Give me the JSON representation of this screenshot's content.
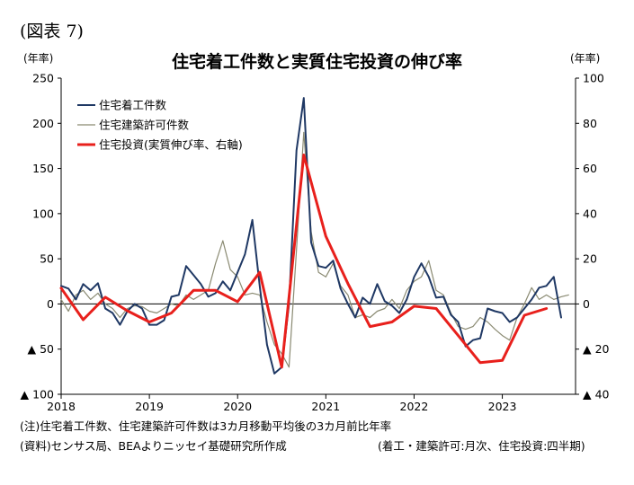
{
  "figure_label": "(図表 7)",
  "notes": {
    "note": "(注)住宅着工件数、住宅建築許可件数は3カ月移動平均後の3カ月前比年率",
    "source": "(資料)センサス局、BEAよりニッセイ基礎研究所作成",
    "frequency": "(着工・建築許可:月次、住宅投資:四半期)"
  },
  "chart_data": {
    "type": "line",
    "title": "住宅着工件数と実質住宅投資の伸び率",
    "left_axis": {
      "unit": "(年率)",
      "range": [
        -100,
        250
      ],
      "ticks": [
        {
          "value": 250,
          "label": "250"
        },
        {
          "value": 200,
          "label": "200"
        },
        {
          "value": 150,
          "label": "150"
        },
        {
          "value": 100,
          "label": "100"
        },
        {
          "value": 50,
          "label": "50"
        },
        {
          "value": 0,
          "label": "0"
        },
        {
          "value": -50,
          "label": "▲ 50"
        },
        {
          "value": -100,
          "label": "▲ 100"
        }
      ]
    },
    "right_axis": {
      "unit": "(年率)",
      "range": [
        -40,
        100
      ],
      "ticks": [
        {
          "value": 100,
          "label": "100"
        },
        {
          "value": 80,
          "label": "80"
        },
        {
          "value": 60,
          "label": "60"
        },
        {
          "value": 40,
          "label": "40"
        },
        {
          "value": 20,
          "label": "20"
        },
        {
          "value": 0,
          "label": "0"
        },
        {
          "value": -20,
          "label": "▲ 20"
        },
        {
          "value": -40,
          "label": "▲ 40"
        }
      ]
    },
    "x_axis": {
      "range": [
        2018.0,
        2023.83
      ],
      "year_labels": [
        {
          "x": 2018,
          "label": "2018"
        },
        {
          "x": 2019,
          "label": "2019"
        },
        {
          "x": 2020,
          "label": "2020"
        },
        {
          "x": 2021,
          "label": "2021"
        },
        {
          "x": 2022,
          "label": "2022"
        },
        {
          "x": 2023,
          "label": "2023"
        }
      ]
    },
    "legend_position": "top-left",
    "grid": false,
    "series": [
      {
        "name": "住宅着工件数",
        "axis": "left",
        "color": "#1f3864",
        "width": 2,
        "x": [
          2018.0,
          2018.083,
          2018.167,
          2018.25,
          2018.333,
          2018.417,
          2018.5,
          2018.583,
          2018.667,
          2018.75,
          2018.833,
          2018.917,
          2019.0,
          2019.083,
          2019.167,
          2019.25,
          2019.333,
          2019.417,
          2019.5,
          2019.583,
          2019.667,
          2019.75,
          2019.833,
          2019.917,
          2020.0,
          2020.083,
          2020.167,
          2020.25,
          2020.333,
          2020.417,
          2020.5,
          2020.583,
          2020.667,
          2020.75,
          2020.833,
          2020.917,
          2021.0,
          2021.083,
          2021.167,
          2021.25,
          2021.333,
          2021.417,
          2021.5,
          2021.583,
          2021.667,
          2021.75,
          2021.833,
          2021.917,
          2022.0,
          2022.083,
          2022.167,
          2022.25,
          2022.333,
          2022.417,
          2022.5,
          2022.583,
          2022.667,
          2022.75,
          2022.833,
          2022.917,
          2023.0,
          2023.083,
          2023.167,
          2023.25,
          2023.333,
          2023.417,
          2023.5,
          2023.583,
          2023.667
        ],
        "y": [
          20,
          17,
          5,
          22,
          15,
          23,
          -5,
          -10,
          -23,
          -8,
          0,
          -5,
          -23,
          -23,
          -18,
          8,
          10,
          42,
          32,
          22,
          8,
          12,
          25,
          15,
          35,
          55,
          93,
          20,
          -45,
          -77,
          -70,
          0,
          170,
          228,
          68,
          42,
          40,
          48,
          17,
          0,
          -15,
          7,
          0,
          22,
          3,
          -2,
          -10,
          5,
          30,
          45,
          30,
          7,
          8,
          -12,
          -20,
          -47,
          -40,
          -38,
          -5,
          -8,
          -10,
          -20,
          -15,
          -5,
          5,
          18,
          20,
          30,
          -15
        ]
      },
      {
        "name": "住宅建築許可件数",
        "axis": "left",
        "color": "#8a8a72",
        "width": 1.2,
        "x": [
          2018.0,
          2018.083,
          2018.167,
          2018.25,
          2018.333,
          2018.417,
          2018.5,
          2018.583,
          2018.667,
          2018.75,
          2018.833,
          2018.917,
          2019.0,
          2019.083,
          2019.167,
          2019.25,
          2019.333,
          2019.417,
          2019.5,
          2019.583,
          2019.667,
          2019.75,
          2019.833,
          2019.917,
          2020.0,
          2020.083,
          2020.167,
          2020.25,
          2020.333,
          2020.417,
          2020.5,
          2020.583,
          2020.667,
          2020.75,
          2020.833,
          2020.917,
          2021.0,
          2021.083,
          2021.167,
          2021.25,
          2021.333,
          2021.417,
          2021.5,
          2021.583,
          2021.667,
          2021.75,
          2021.833,
          2021.917,
          2022.0,
          2022.083,
          2022.167,
          2022.25,
          2022.333,
          2022.417,
          2022.5,
          2022.583,
          2022.667,
          2022.75,
          2022.833,
          2022.917,
          2023.0,
          2023.083,
          2023.167,
          2023.25,
          2023.333,
          2023.417,
          2023.5,
          2023.583,
          2023.667,
          2023.75
        ],
        "y": [
          5,
          -8,
          10,
          15,
          5,
          12,
          0,
          -5,
          -15,
          -5,
          -2,
          -3,
          -8,
          -10,
          -5,
          0,
          -2,
          10,
          5,
          10,
          15,
          45,
          70,
          38,
          30,
          10,
          12,
          10,
          -20,
          -45,
          -55,
          -70,
          60,
          190,
          80,
          35,
          30,
          45,
          20,
          10,
          -15,
          -12,
          -15,
          -8,
          -5,
          5,
          -5,
          15,
          25,
          30,
          48,
          15,
          10,
          -10,
          -25,
          -28,
          -25,
          -15,
          -20,
          -28,
          -35,
          -40,
          -15,
          0,
          18,
          5,
          10,
          5,
          8,
          10
        ]
      },
      {
        "name": "住宅投資(実質伸び率、右軸)",
        "axis": "right",
        "color": "#e8201c",
        "width": 3,
        "x": [
          2018.0,
          2018.25,
          2018.5,
          2018.75,
          2019.0,
          2019.25,
          2019.5,
          2019.75,
          2020.0,
          2020.25,
          2020.5,
          2020.75,
          2021.0,
          2021.25,
          2021.5,
          2021.75,
          2022.0,
          2022.25,
          2022.5,
          2022.75,
          2023.0,
          2023.25,
          2023.5
        ],
        "y": [
          7,
          -7,
          3,
          -3,
          -8,
          -4,
          6,
          6,
          1,
          14,
          -28,
          66,
          30,
          9,
          -10,
          -8,
          -1,
          -2,
          -14,
          -26,
          -25,
          -5,
          -2
        ]
      }
    ]
  }
}
